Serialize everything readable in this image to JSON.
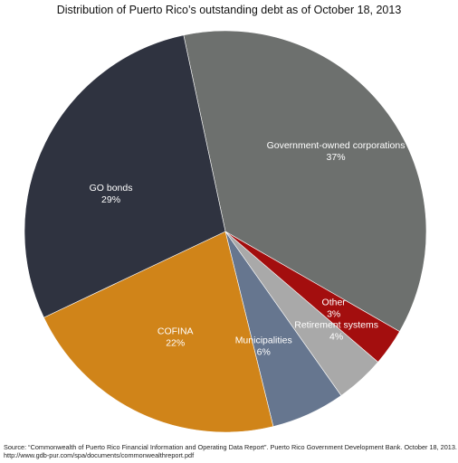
{
  "chart_data": {
    "type": "pie",
    "title": "Distribution of Puerto Rico’s outstanding debt as of October 18, 2013",
    "slices": [
      {
        "label": "Government-owned corporations",
        "value": 37,
        "value_label": "37%",
        "color": "#6d706e"
      },
      {
        "label": "Other",
        "value": 3,
        "value_label": "3%",
        "color": "#a30e0e"
      },
      {
        "label": "Retirement systems",
        "value": 4,
        "value_label": "4%",
        "color": "#a9a9a9"
      },
      {
        "label": "Municipalities",
        "value": 6,
        "value_label": "6%",
        "color": "#66768f"
      },
      {
        "label": "COFINA",
        "value": 22,
        "value_label": "22%",
        "color": "#d08419"
      },
      {
        "label": "GO bonds",
        "value": 29,
        "value_label": "29%",
        "color": "#2f3340"
      }
    ]
  },
  "source": {
    "line1": "Source: “Commonwealth of Puerto Rico Financial Information and Operating Data Report”. Puerto Rico Government Development Bank. October 18, 2013.",
    "line2": "http://www.gdb-pur.com/spa/documents/commonwealthreport.pdf"
  }
}
